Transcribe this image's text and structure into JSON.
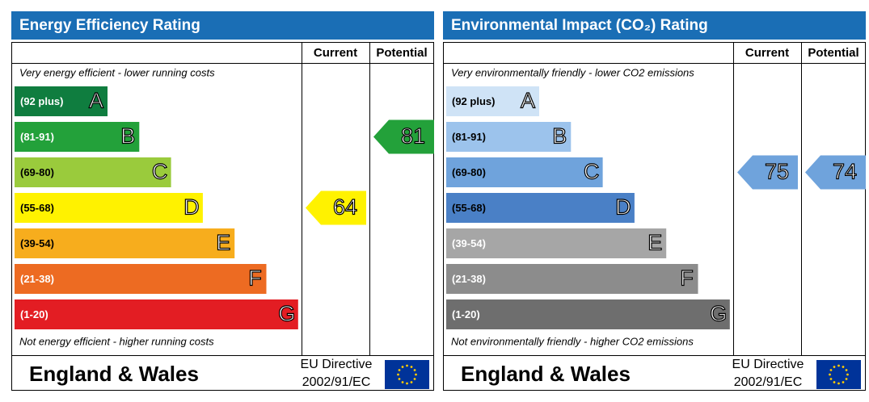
{
  "chart_data": [
    {
      "type": "epc",
      "title": "Energy Efficiency Rating",
      "column_labels": [
        "Current",
        "Potential"
      ],
      "top_note": "Very energy efficient - lower running costs",
      "bottom_note": "Not energy efficient - higher running costs",
      "bands": [
        {
          "label": "(92 plus)",
          "letter": "A",
          "color": "#0f7d3f",
          "label_color": "#ffffff"
        },
        {
          "label": "(81-91)",
          "letter": "B",
          "color": "#23a13a",
          "label_color": "#ffffff"
        },
        {
          "label": "(69-80)",
          "letter": "C",
          "color": "#9acb3c",
          "label_color": "#000000"
        },
        {
          "label": "(55-68)",
          "letter": "D",
          "color": "#fff200",
          "label_color": "#000000"
        },
        {
          "label": "(39-54)",
          "letter": "E",
          "color": "#f7ad1d",
          "label_color": "#000000"
        },
        {
          "label": "(21-38)",
          "letter": "F",
          "color": "#ed6b22",
          "label_color": "#ffffff"
        },
        {
          "label": "(1-20)",
          "letter": "G",
          "color": "#e31d23",
          "label_color": "#ffffff"
        }
      ],
      "current": 64,
      "potential": 81,
      "footer": {
        "region": "England & Wales",
        "directive": [
          "EU Directive",
          "2002/91/EC"
        ]
      }
    },
    {
      "type": "epc",
      "title": "Environmental Impact (CO₂) Rating",
      "column_labels": [
        "Current",
        "Potential"
      ],
      "top_note": "Very environmentally friendly - lower CO2 emissions",
      "bottom_note": "Not environmentally friendly - higher CO2 emissions",
      "bands": [
        {
          "label": "(92 plus)",
          "letter": "A",
          "color": "#cfe3f6",
          "label_color": "#000000"
        },
        {
          "label": "(81-91)",
          "letter": "B",
          "color": "#9cc3ec",
          "label_color": "#000000"
        },
        {
          "label": "(69-80)",
          "letter": "C",
          "color": "#6fa3dc",
          "label_color": "#000000"
        },
        {
          "label": "(55-68)",
          "letter": "D",
          "color": "#4a80c6",
          "label_color": "#000000"
        },
        {
          "label": "(39-54)",
          "letter": "E",
          "color": "#a6a6a6",
          "label_color": "#ffffff"
        },
        {
          "label": "(21-38)",
          "letter": "F",
          "color": "#8c8c8c",
          "label_color": "#ffffff"
        },
        {
          "label": "(1-20)",
          "letter": "G",
          "color": "#6e6e6e",
          "label_color": "#ffffff"
        }
      ],
      "current": 75,
      "potential": 74,
      "footer": {
        "region": "England & Wales",
        "directive": [
          "EU Directive",
          "2002/91/EC"
        ]
      }
    }
  ]
}
